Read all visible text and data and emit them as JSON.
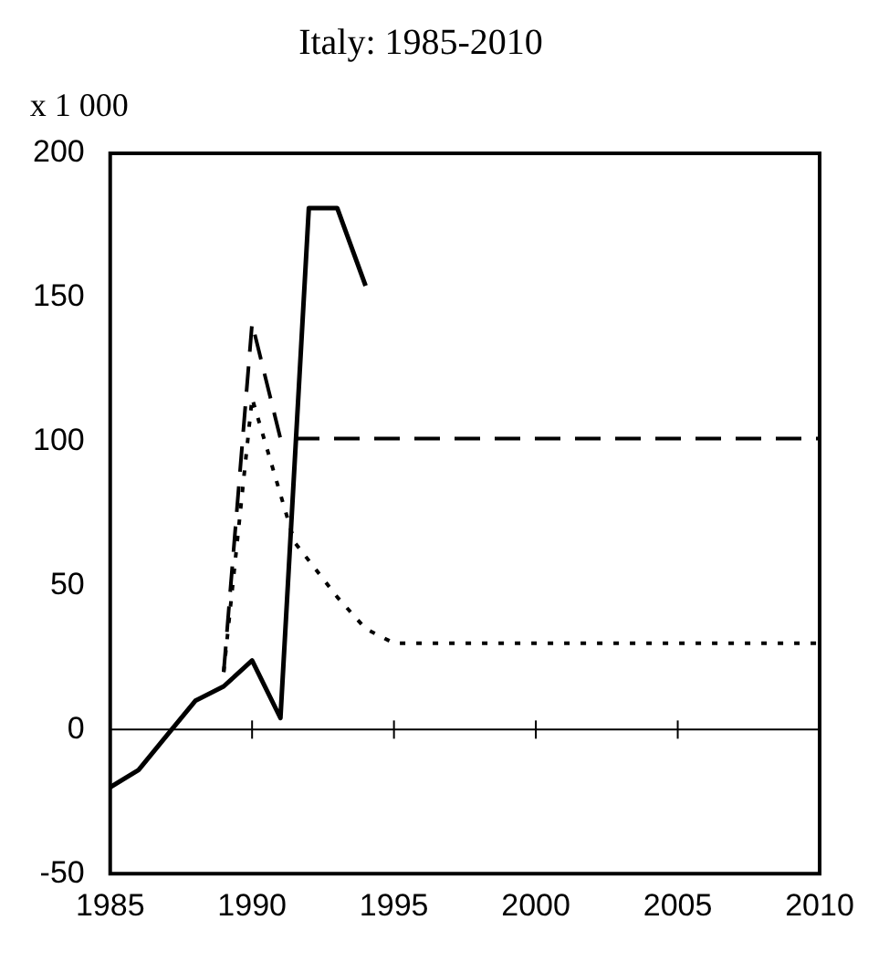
{
  "chart_data": {
    "type": "line",
    "title": "Italy: 1985-2010",
    "ylabel": "x 1 000",
    "xlim": [
      1985,
      2010
    ],
    "xticks": [
      1985,
      1990,
      1995,
      2000,
      2005,
      2010
    ],
    "ylim": [
      -50,
      200
    ],
    "yticks": [
      -50,
      0,
      50,
      100,
      150,
      200
    ],
    "grid": false,
    "legend": false,
    "marker": "none",
    "ref_lines": [
      {
        "axis": "y",
        "value": 0,
        "color": "#000000",
        "line_style": "solid"
      }
    ],
    "series": [
      {
        "color": "#000000",
        "line_style": "solid",
        "x": [
          1985,
          1986,
          1987,
          1988,
          1989,
          1990,
          1991,
          1992,
          1993,
          1994
        ],
        "values": [
          -20,
          -14,
          -2,
          10,
          15,
          24,
          4,
          181,
          181,
          154
        ]
      },
      {
        "color": "#000000",
        "line_style": "dashed",
        "x": [
          1989,
          1990,
          1991,
          2010
        ],
        "values": [
          20,
          141,
          101,
          101
        ]
      },
      {
        "color": "#000000",
        "line_style": "dotted",
        "x": [
          1989,
          1990,
          1991.5,
          1993,
          1994,
          1995,
          2010
        ],
        "values": [
          20,
          115,
          65,
          46,
          35,
          30,
          30
        ]
      }
    ]
  }
}
